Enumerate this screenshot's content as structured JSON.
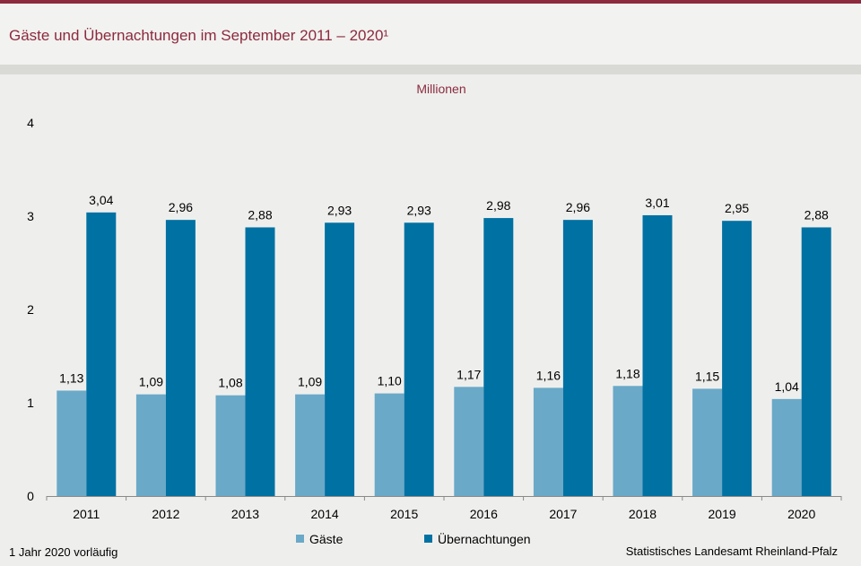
{
  "title": "Gäste und Übernachtungen im September 2011 – 2020¹",
  "footnote": "1 Jahr 2020 vorläufig",
  "source": "Statistisches Landesamt  Rheinland-Pfalz",
  "colors": {
    "accent": "#8c2a3e",
    "gaeste": "#6aa9c8",
    "uebernachtungen": "#0071a3"
  },
  "chart_data": {
    "type": "bar",
    "unit": "Millionen",
    "categories": [
      "2011",
      "2012",
      "2013",
      "2014",
      "2015",
      "2016",
      "2017",
      "2018",
      "2019",
      "2020"
    ],
    "series": [
      {
        "name": "Gäste",
        "values": [
          1.13,
          1.09,
          1.08,
          1.09,
          1.1,
          1.17,
          1.16,
          1.18,
          1.15,
          1.04
        ],
        "labels": [
          "1,13",
          "1,09",
          "1,08",
          "1,09",
          "1,10",
          "1,17",
          "1,16",
          "1,18",
          "1,15",
          "1,04"
        ]
      },
      {
        "name": "Übernachtungen",
        "values": [
          3.04,
          2.96,
          2.88,
          2.93,
          2.93,
          2.98,
          2.96,
          3.01,
          2.95,
          2.88
        ],
        "labels": [
          "3,04",
          "2,96",
          "2,88",
          "2,93",
          "2,93",
          "2,98",
          "2,96",
          "3,01",
          "2,95",
          "2,88"
        ]
      }
    ],
    "ylim": [
      0,
      4
    ],
    "yticks": [
      "0",
      "1",
      "2",
      "3",
      "4"
    ],
    "grid": false,
    "legend": "bottom"
  }
}
